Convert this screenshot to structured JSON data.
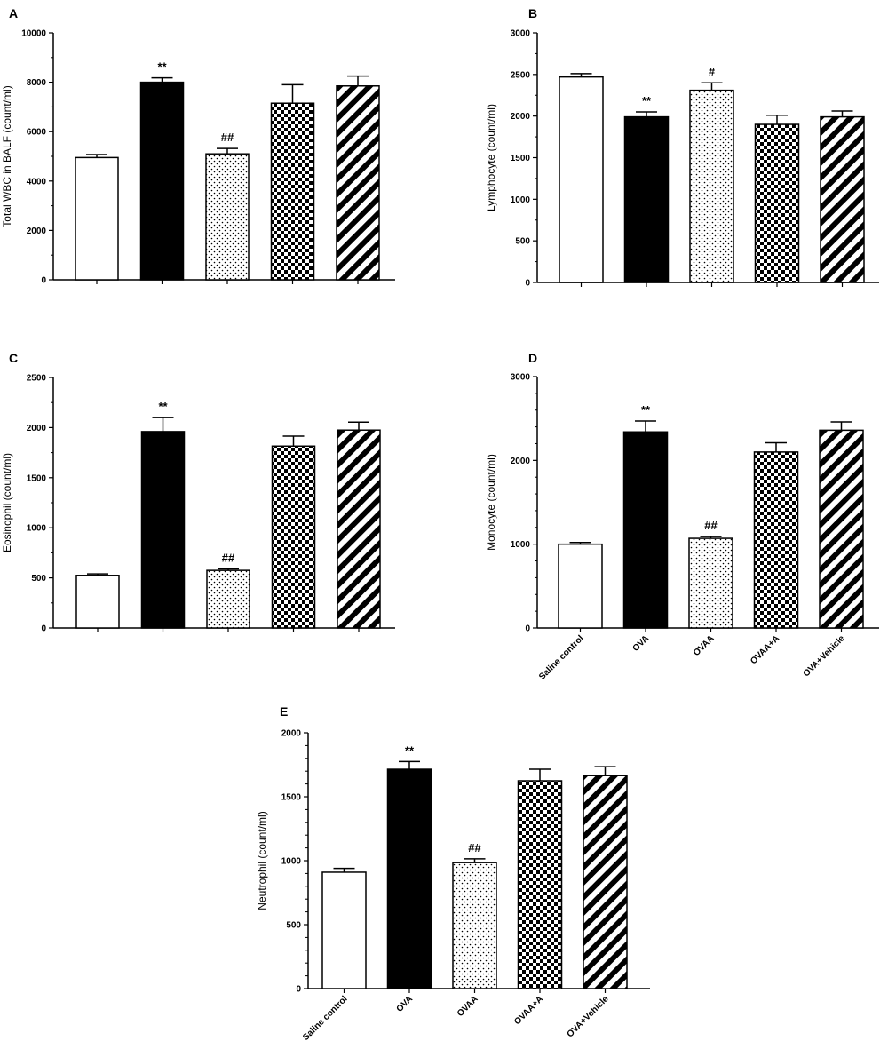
{
  "series_styles": {
    "Saline control": {
      "fill": "open"
    },
    "OVA": {
      "fill": "solid"
    },
    "OVAA": {
      "fill": "dots"
    },
    "OVAA+A": {
      "fill": "checker"
    },
    "OVA+Vehicle": {
      "fill": "stripes"
    }
  },
  "colors": {
    "bar_stroke": "#000000",
    "solid_fill": "#000000",
    "open_fill": "#ffffff"
  },
  "chart_data": [
    {
      "panel": "A",
      "type": "bar",
      "categories": [
        "Saline control",
        "OVA",
        "OVAA",
        "OVAA+A",
        "OVA+Vehicle"
      ],
      "show_category_labels": false,
      "values": [
        4950,
        8000,
        5100,
        7150,
        7850
      ],
      "errors": [
        120,
        180,
        220,
        750,
        400
      ],
      "annotations": [
        "",
        "**",
        "##",
        "",
        ""
      ],
      "ylabel": "Total WBC in BALF (count/ml)",
      "ylim": [
        0,
        10000
      ],
      "yticks": [
        "0",
        "2000",
        "4000",
        "6000",
        "8000",
        "10000"
      ],
      "minor_ticks_per_interval": 1
    },
    {
      "panel": "B",
      "type": "bar",
      "categories": [
        "Saline control",
        "OVA",
        "OVAA",
        "OVAA+A",
        "OVA+Vehicle"
      ],
      "show_category_labels": false,
      "values": [
        2470,
        1990,
        2310,
        1900,
        1990
      ],
      "errors": [
        40,
        60,
        90,
        110,
        70
      ],
      "annotations": [
        "",
        "**",
        "#",
        "",
        ""
      ],
      "ylabel": "Lymphocyte (count/ml)",
      "ylim": [
        0,
        3000
      ],
      "yticks": [
        "0",
        "500",
        "1000",
        "1500",
        "2000",
        "2500",
        "3000"
      ],
      "minor_ticks_per_interval": 1
    },
    {
      "panel": "C",
      "type": "bar",
      "categories": [
        "Saline control",
        "OVA",
        "OVAA",
        "OVAA+A",
        "OVA+Vehicle"
      ],
      "show_category_labels": false,
      "values": [
        525,
        1960,
        575,
        1815,
        1975
      ],
      "errors": [
        15,
        140,
        15,
        100,
        80
      ],
      "annotations": [
        "",
        "**",
        "##",
        "",
        ""
      ],
      "ylabel": "Eosinophil (count/ml)",
      "ylim": [
        0,
        2500
      ],
      "yticks": [
        "0",
        "500",
        "1000",
        "1500",
        "2000",
        "2500"
      ],
      "minor_ticks_per_interval": 1
    },
    {
      "panel": "D",
      "type": "bar",
      "categories": [
        "Saline control",
        "OVA",
        "OVAA",
        "OVAA+A",
        "OVA+Vehicle"
      ],
      "show_category_labels": true,
      "values": [
        1000,
        2340,
        1070,
        2100,
        2360
      ],
      "errors": [
        20,
        130,
        20,
        110,
        100
      ],
      "annotations": [
        "",
        "**",
        "##",
        "",
        ""
      ],
      "ylabel": "Monocyte (count/ml)",
      "ylim": [
        0,
        3000
      ],
      "yticks": [
        "0",
        "1000",
        "2000",
        "3000"
      ],
      "minor_ticks_per_interval": 4
    },
    {
      "panel": "E",
      "type": "bar",
      "categories": [
        "Saline control",
        "OVA",
        "OVAA",
        "OVAA+A",
        "OVA+Vehicle"
      ],
      "show_category_labels": true,
      "values": [
        910,
        1715,
        985,
        1625,
        1665
      ],
      "errors": [
        30,
        60,
        30,
        90,
        70
      ],
      "annotations": [
        "",
        "**",
        "##",
        "",
        ""
      ],
      "ylabel": "Neutrophil (count/ml)",
      "ylim": [
        0,
        2000
      ],
      "yticks": [
        "0",
        "500",
        "1000",
        "1500",
        "2000"
      ],
      "minor_ticks_per_interval": 4
    }
  ]
}
